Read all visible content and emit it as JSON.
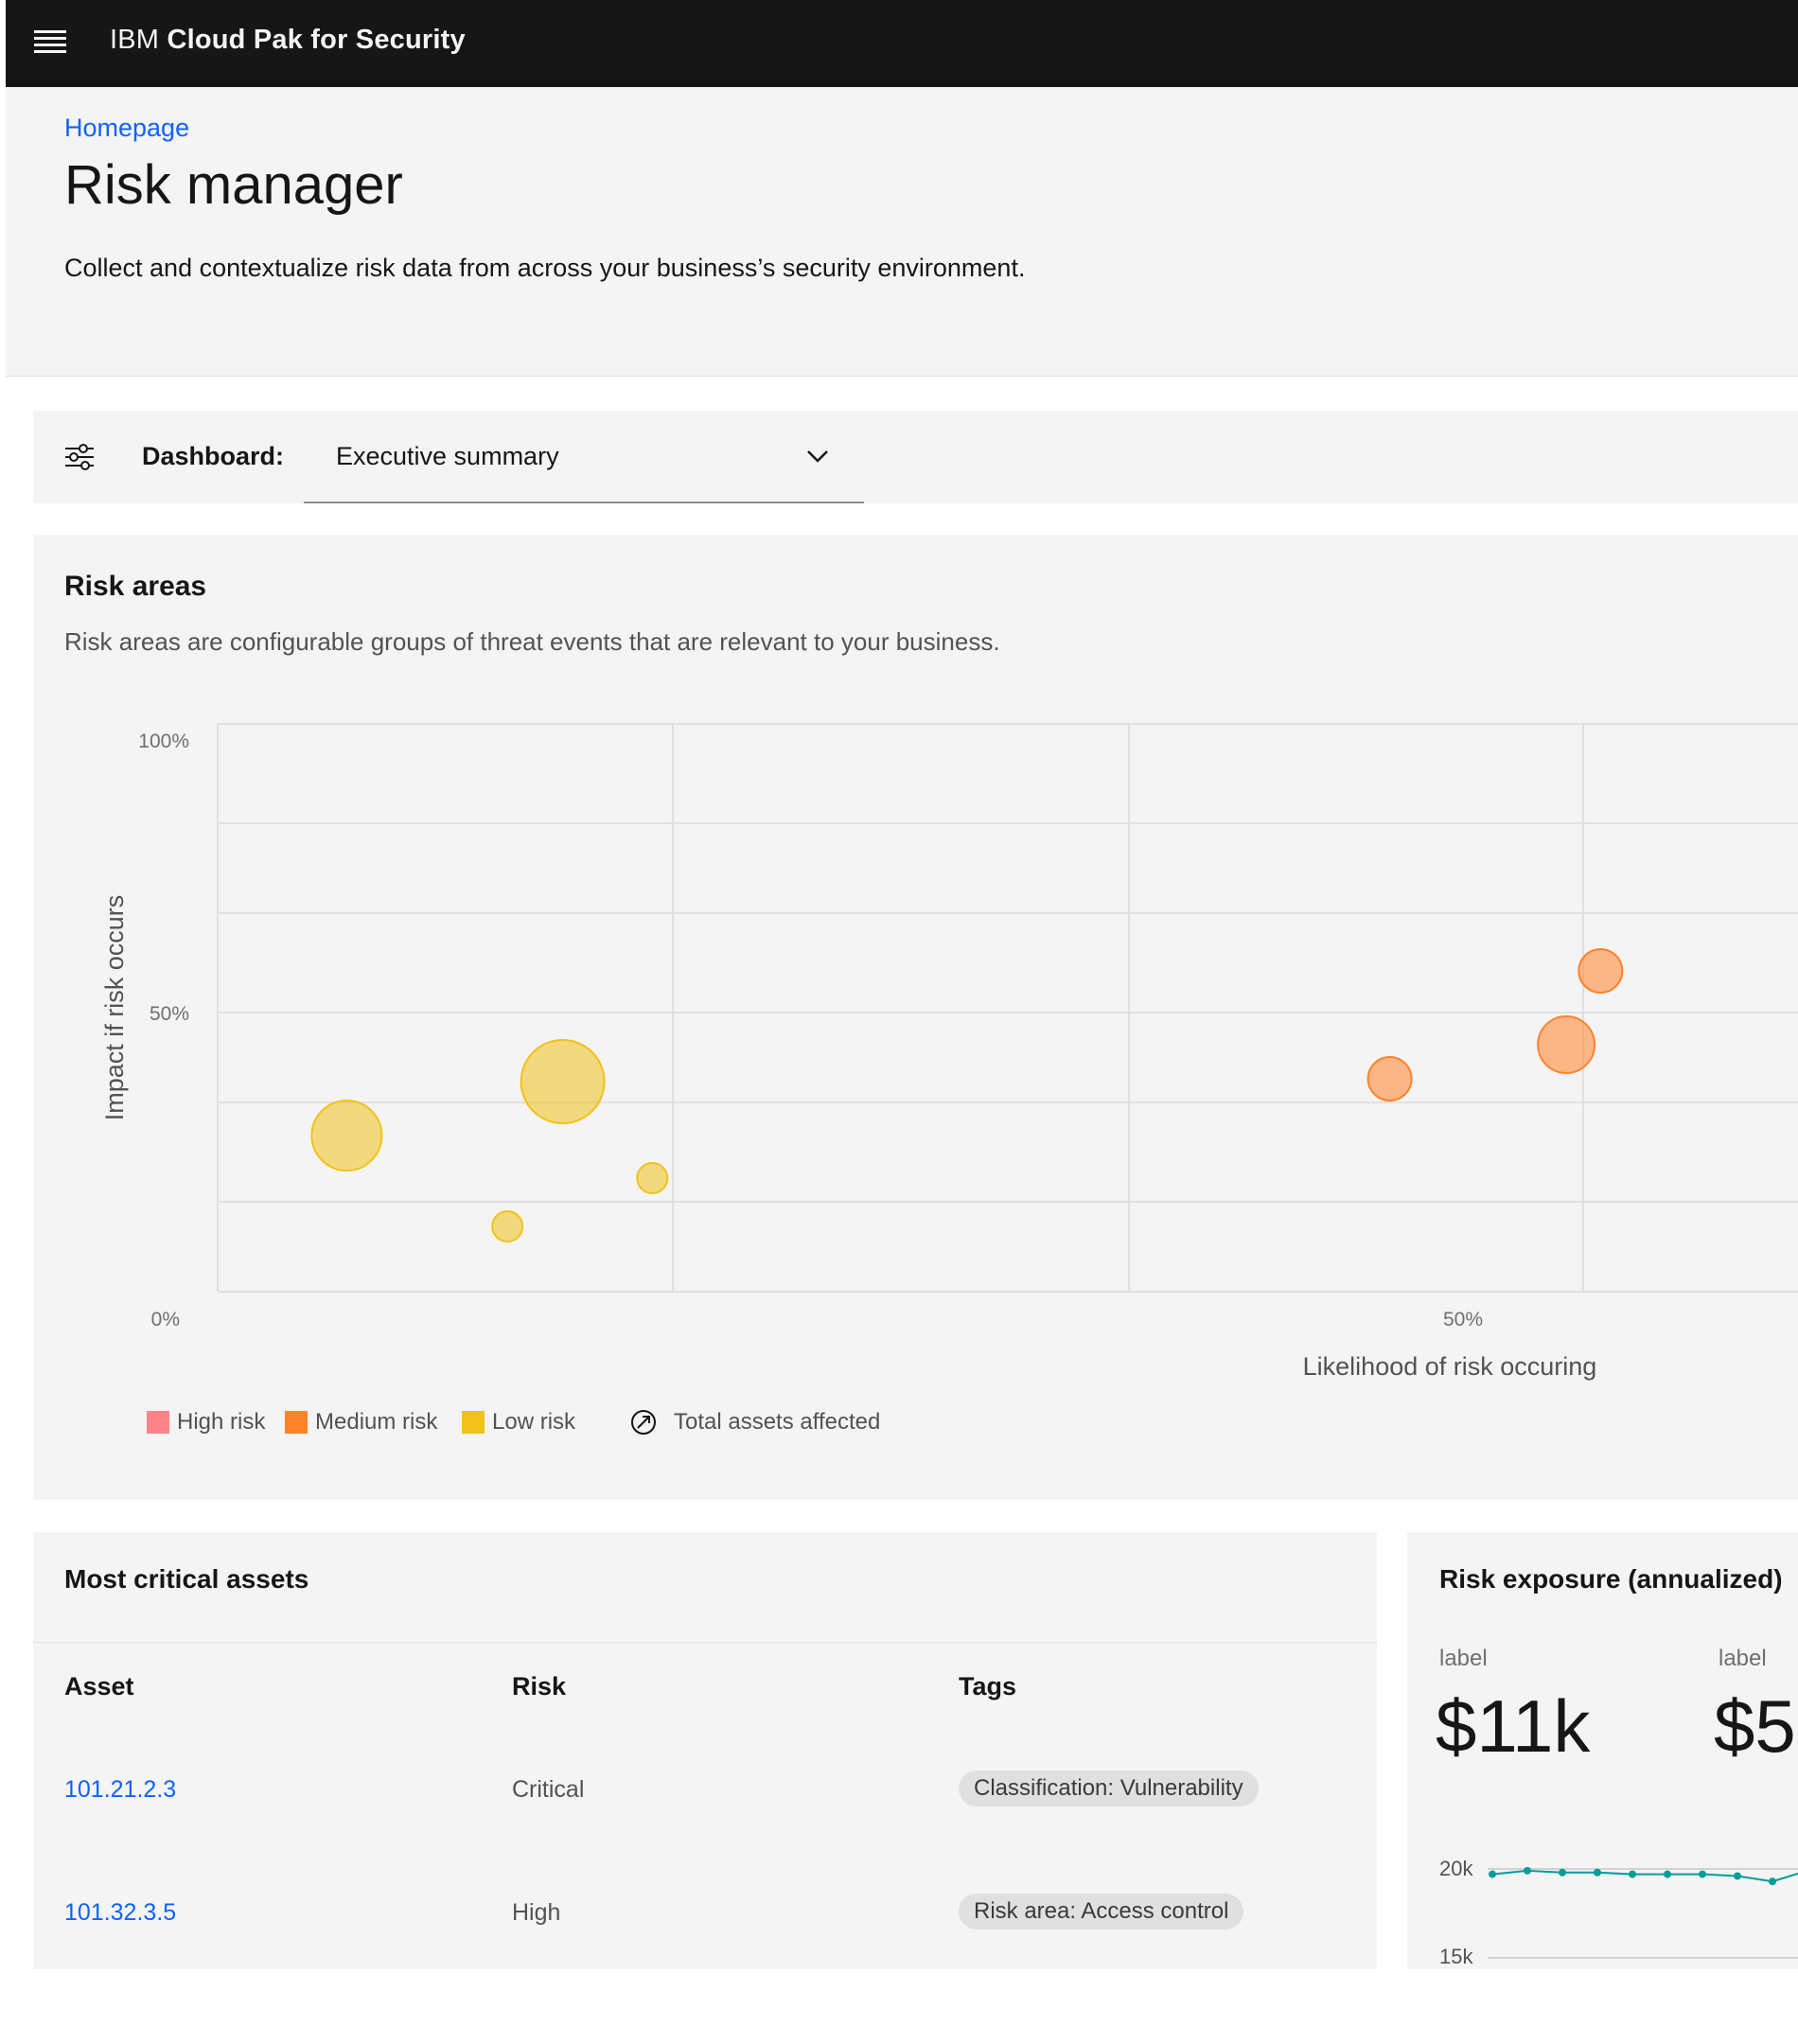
{
  "topbar": {
    "brand_prefix": "IBM",
    "brand_name": "Cloud Pak for Security"
  },
  "header": {
    "breadcrumb": "Homepage",
    "title": "Risk manager",
    "description": "Collect and contextualize risk data from across your business’s security environment."
  },
  "dashboard": {
    "label": "Dashboard:",
    "selected": "Executive summary"
  },
  "risk_areas": {
    "title": "Risk areas",
    "description": "Risk areas are configurable groups of threat events that are relevant to your business.",
    "legend": {
      "high": "High risk",
      "medium": "Medium risk",
      "low": "Low risk",
      "total": "Total assets affected"
    }
  },
  "chart_data": {
    "type": "scatter",
    "xlabel": "Likelihood of risk occuring",
    "ylabel": "Impact if risk occurs",
    "x_ticks": [
      "0%",
      "50%"
    ],
    "y_ticks": [
      "100%",
      "50%",
      "0%"
    ],
    "xlim": [
      0,
      60
    ],
    "ylim": [
      0,
      100
    ],
    "colors": {
      "high": "#ff8389",
      "medium": "#ff832b",
      "low": "#f1c21b"
    },
    "points": [
      {
        "x": 4.9,
        "y": 27.5,
        "size": 4,
        "risk": "low"
      },
      {
        "x": 13.1,
        "y": 37.0,
        "size": 5,
        "risk": "low"
      },
      {
        "x": 11.0,
        "y": 11.5,
        "size": 1,
        "risk": "low"
      },
      {
        "x": 16.5,
        "y": 20.0,
        "size": 1,
        "risk": "low"
      },
      {
        "x": 44.5,
        "y": 37.5,
        "size": 2,
        "risk": "medium"
      },
      {
        "x": 51.2,
        "y": 43.5,
        "size": 3,
        "risk": "medium"
      },
      {
        "x": 52.5,
        "y": 56.5,
        "size": 2,
        "risk": "medium"
      }
    ]
  },
  "critical_assets": {
    "title": "Most critical assets",
    "columns": [
      "Asset",
      "Risk",
      "Tags"
    ],
    "rows": [
      {
        "asset": "101.21.2.3",
        "risk": "Critical",
        "tag": "Classification: Vulnerability"
      },
      {
        "asset": "101.32.3.5",
        "risk": "High",
        "tag": "Risk area: Access control"
      }
    ]
  },
  "exposure": {
    "title": "Risk exposure (annualized)",
    "kpis": [
      {
        "label": "label",
        "value": "$11k"
      },
      {
        "label": "label",
        "value": "$5"
      }
    ],
    "spark_ticks": [
      "20k",
      "15k"
    ],
    "spark_ylim": [
      15000,
      20000
    ],
    "spark_values": [
      19700,
      19900,
      19800,
      19800,
      19700,
      19700,
      19700,
      19600,
      19300,
      19900
    ],
    "spark_color": "#009d9a"
  }
}
